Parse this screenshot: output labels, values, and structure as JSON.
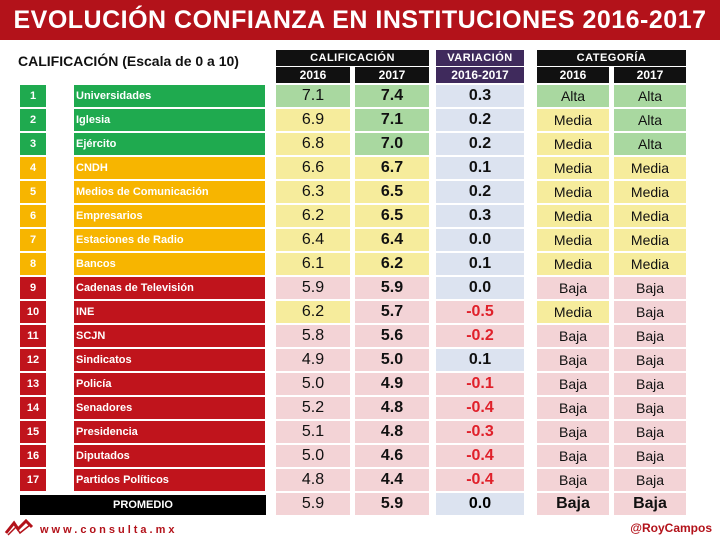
{
  "title": "EVOLUCIÓN CONFIANZA EN INSTITUCIONES 2016-2017",
  "subtitle": "CALIFICACIÓN (Escala de 0 a 10)",
  "headers": {
    "calificacion": "CALIFICACIÓN",
    "variacion": "VARIACIÓN",
    "categoria": "CATEGORÍA",
    "y2016": "2016",
    "y2017": "2017",
    "range": "2016-2017"
  },
  "colors": {
    "green": "#1faa4f",
    "orange": "#f7b500",
    "red": "#c0141c",
    "title_red": "#b3121a",
    "purple_header": "#3f2a5c",
    "negative_text": "#e0202a"
  },
  "rows": [
    {
      "n": "1",
      "name": "Universidades",
      "s16": "7.1",
      "s17": "7.4",
      "var": "0.3",
      "c16": "Alta",
      "c17": "Alta"
    },
    {
      "n": "2",
      "name": "Iglesia",
      "s16": "6.9",
      "s17": "7.1",
      "var": "0.2",
      "c16": "Media",
      "c17": "Alta"
    },
    {
      "n": "3",
      "name": "Ejército",
      "s16": "6.8",
      "s17": "7.0",
      "var": "0.2",
      "c16": "Media",
      "c17": "Alta"
    },
    {
      "n": "4",
      "name": "CNDH",
      "s16": "6.6",
      "s17": "6.7",
      "var": "0.1",
      "c16": "Media",
      "c17": "Media"
    },
    {
      "n": "5",
      "name": "Medios de Comunicación",
      "s16": "6.3",
      "s17": "6.5",
      "var": "0.2",
      "c16": "Media",
      "c17": "Media"
    },
    {
      "n": "6",
      "name": "Empresarios",
      "s16": "6.2",
      "s17": "6.5",
      "var": "0.3",
      "c16": "Media",
      "c17": "Media"
    },
    {
      "n": "7",
      "name": "Estaciones de Radio",
      "s16": "6.4",
      "s17": "6.4",
      "var": "0.0",
      "c16": "Media",
      "c17": "Media"
    },
    {
      "n": "8",
      "name": "Bancos",
      "s16": "6.1",
      "s17": "6.2",
      "var": "0.1",
      "c16": "Media",
      "c17": "Media"
    },
    {
      "n": "9",
      "name": "Cadenas de Televisión",
      "s16": "5.9",
      "s17": "5.9",
      "var": "0.0",
      "c16": "Baja",
      "c17": "Baja"
    },
    {
      "n": "10",
      "name": "INE",
      "s16": "6.2",
      "s17": "5.7",
      "var": "-0.5",
      "c16": "Media",
      "c17": "Baja"
    },
    {
      "n": "11",
      "name": "SCJN",
      "s16": "5.8",
      "s17": "5.6",
      "var": "-0.2",
      "c16": "Baja",
      "c17": "Baja"
    },
    {
      "n": "12",
      "name": "Sindicatos",
      "s16": "4.9",
      "s17": "5.0",
      "var": "0.1",
      "c16": "Baja",
      "c17": "Baja"
    },
    {
      "n": "13",
      "name": "Policía",
      "s16": "5.0",
      "s17": "4.9",
      "var": "-0.1",
      "c16": "Baja",
      "c17": "Baja"
    },
    {
      "n": "14",
      "name": "Senadores",
      "s16": "5.2",
      "s17": "4.8",
      "var": "-0.4",
      "c16": "Baja",
      "c17": "Baja"
    },
    {
      "n": "15",
      "name": "Presidencia",
      "s16": "5.1",
      "s17": "4.8",
      "var": "-0.3",
      "c16": "Baja",
      "c17": "Baja"
    },
    {
      "n": "16",
      "name": "Diputados",
      "s16": "5.0",
      "s17": "4.6",
      "var": "-0.4",
      "c16": "Baja",
      "c17": "Baja"
    },
    {
      "n": "17",
      "name": "Partidos Políticos",
      "s16": "4.8",
      "s17": "4.4",
      "var": "-0.4",
      "c16": "Baja",
      "c17": "Baja"
    }
  ],
  "promedio": {
    "label": "PROMEDIO",
    "s16": "5.9",
    "s17": "5.9",
    "var": "0.0",
    "c16": "Baja",
    "c17": "Baja"
  },
  "footer": {
    "website": "www.consulta.mx",
    "handle": "@RoyCampos"
  }
}
